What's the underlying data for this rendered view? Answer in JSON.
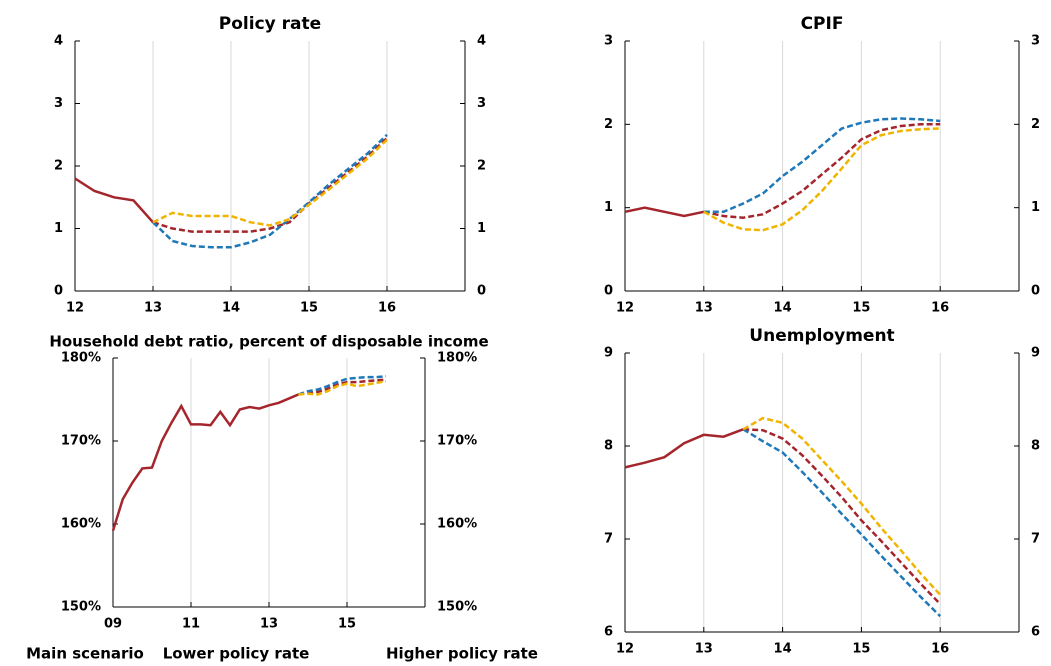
{
  "chart_data": [
    {
      "type": "line",
      "title": "Policy rate",
      "x": [
        12,
        12.25,
        12.5,
        12.75,
        13,
        13.25,
        13.5,
        13.75,
        14,
        14.25,
        14.5,
        14.75,
        15,
        15.25,
        15.5,
        15.75,
        16
      ],
      "xlim": [
        12,
        17
      ],
      "xticks": [
        12,
        13,
        14,
        15,
        16
      ],
      "ylim": [
        0,
        4
      ],
      "yticks": [
        0,
        1,
        2,
        3,
        4
      ],
      "grid": true,
      "series": [
        {
          "name": "Main scenario",
          "color": "#a4262c",
          "dashed": false,
          "values": [
            1.8,
            1.6,
            1.5,
            1.45,
            1.1,
            null,
            null,
            null,
            null,
            null,
            null,
            null,
            null,
            null,
            null,
            null,
            null
          ]
        },
        {
          "color": "#a4262c",
          "dashed": true,
          "values": [
            null,
            null,
            null,
            null,
            1.1,
            1.0,
            0.95,
            0.95,
            0.95,
            0.95,
            1.0,
            1.1,
            1.4,
            1.65,
            1.9,
            2.15,
            2.45
          ]
        },
        {
          "name": "Lower policy rate",
          "color": "#1f78b8",
          "dashed": true,
          "values": [
            null,
            null,
            null,
            null,
            1.1,
            0.8,
            0.72,
            0.7,
            0.7,
            0.78,
            0.9,
            1.15,
            1.42,
            1.7,
            1.95,
            2.2,
            2.5
          ]
        },
        {
          "name": "Higher policy rate",
          "color": "#f0b400",
          "dashed": true,
          "values": [
            null,
            null,
            null,
            null,
            1.1,
            1.25,
            1.2,
            1.2,
            1.2,
            1.1,
            1.05,
            1.15,
            1.38,
            1.62,
            1.87,
            2.12,
            2.42
          ]
        }
      ]
    },
    {
      "type": "line",
      "title": "CPIF",
      "x": [
        12,
        12.25,
        12.5,
        12.75,
        13,
        13.25,
        13.5,
        13.75,
        14,
        14.25,
        14.5,
        14.75,
        15,
        15.25,
        15.5,
        15.75,
        16
      ],
      "xlim": [
        12,
        17
      ],
      "xticks": [
        12,
        13,
        14,
        15,
        16
      ],
      "ylim": [
        0,
        3
      ],
      "yticks": [
        0,
        1,
        2,
        3
      ],
      "grid": true,
      "series": [
        {
          "color": "#a4262c",
          "dashed": false,
          "values": [
            0.95,
            1.0,
            0.95,
            0.9,
            0.95,
            null,
            null,
            null,
            null,
            null,
            null,
            null,
            null,
            null,
            null,
            null,
            null
          ]
        },
        {
          "color": "#a4262c",
          "dashed": true,
          "values": [
            null,
            null,
            null,
            null,
            0.95,
            0.9,
            0.88,
            0.92,
            1.05,
            1.2,
            1.4,
            1.6,
            1.82,
            1.93,
            1.98,
            2.0,
            2.0
          ]
        },
        {
          "color": "#1f78b8",
          "dashed": true,
          "values": [
            null,
            null,
            null,
            null,
            0.95,
            0.95,
            1.05,
            1.17,
            1.38,
            1.55,
            1.75,
            1.95,
            2.02,
            2.06,
            2.07,
            2.06,
            2.04
          ]
        },
        {
          "color": "#f0b400",
          "dashed": true,
          "values": [
            null,
            null,
            null,
            null,
            0.95,
            0.82,
            0.74,
            0.73,
            0.8,
            0.97,
            1.2,
            1.47,
            1.75,
            1.87,
            1.92,
            1.94,
            1.95
          ]
        }
      ]
    },
    {
      "type": "line",
      "title": "Household debt ratio, percent of disposable income",
      "x": [
        9,
        9.25,
        9.5,
        9.75,
        10,
        10.25,
        10.5,
        10.75,
        11,
        11.25,
        11.5,
        11.75,
        12,
        12.25,
        12.5,
        12.75,
        13,
        13.25,
        13.5,
        13.75,
        14,
        14.25,
        14.5,
        14.75,
        15,
        15.25,
        15.5,
        15.75,
        16
      ],
      "xlim": [
        9,
        17
      ],
      "xticks": [
        {
          "value": 9,
          "label": "09"
        },
        11,
        13,
        15
      ],
      "ylim": [
        150,
        180
      ],
      "yticks": [
        {
          "value": 150,
          "label": "150%"
        },
        {
          "value": 160,
          "label": "160%"
        },
        {
          "value": 170,
          "label": "170%"
        },
        {
          "value": 180,
          "label": "180%"
        }
      ],
      "grid": true,
      "series": [
        {
          "color": "#a4262c",
          "dashed": false,
          "values": [
            159.2,
            163,
            165,
            166.7,
            166.8,
            170,
            172.2,
            174.2,
            172,
            172,
            171.9,
            173.5,
            171.9,
            173.8,
            174.1,
            173.9,
            174.3,
            174.6,
            175.1,
            175.6,
            null,
            null,
            null,
            null,
            null,
            null,
            null,
            null,
            null
          ]
        },
        {
          "color": "#a4262c",
          "dashed": true,
          "values": [
            null,
            null,
            null,
            null,
            null,
            null,
            null,
            null,
            null,
            null,
            null,
            null,
            null,
            null,
            null,
            null,
            null,
            null,
            null,
            175.6,
            175.8,
            175.9,
            176.3,
            176.8,
            177.1,
            177.1,
            177.2,
            177.3,
            177.4
          ]
        },
        {
          "color": "#1f78b8",
          "dashed": true,
          "values": [
            null,
            null,
            null,
            null,
            null,
            null,
            null,
            null,
            null,
            null,
            null,
            null,
            null,
            null,
            null,
            null,
            null,
            null,
            null,
            175.6,
            176,
            176.2,
            176.6,
            177.1,
            177.5,
            177.6,
            177.7,
            177.7,
            177.8
          ]
        },
        {
          "color": "#f0b400",
          "dashed": true,
          "values": [
            null,
            null,
            null,
            null,
            null,
            null,
            null,
            null,
            null,
            null,
            null,
            null,
            null,
            null,
            null,
            null,
            null,
            null,
            null,
            175.6,
            175.7,
            175.6,
            176,
            176.6,
            176.9,
            176.6,
            176.8,
            177,
            177.2
          ]
        }
      ]
    },
    {
      "type": "line",
      "title": "Unemployment",
      "x": [
        12,
        12.25,
        12.5,
        12.75,
        13,
        13.25,
        13.5,
        13.75,
        14,
        14.25,
        14.5,
        14.75,
        15,
        15.25,
        15.5,
        15.75,
        16
      ],
      "xlim": [
        12,
        17
      ],
      "xticks": [
        12,
        13,
        14,
        15,
        16
      ],
      "ylim": [
        6,
        9
      ],
      "yticks": [
        6,
        7,
        8,
        9
      ],
      "grid": true,
      "series": [
        {
          "color": "#a4262c",
          "dashed": false,
          "values": [
            7.77,
            7.82,
            7.88,
            8.03,
            8.12,
            8.1,
            8.18,
            null,
            null,
            null,
            null,
            null,
            null,
            null,
            null,
            null,
            null
          ]
        },
        {
          "color": "#a4262c",
          "dashed": true,
          "values": [
            null,
            null,
            null,
            null,
            null,
            null,
            8.18,
            8.17,
            8.08,
            7.9,
            7.68,
            7.45,
            7.2,
            6.98,
            6.75,
            6.52,
            6.3
          ]
        },
        {
          "color": "#1f78b8",
          "dashed": true,
          "values": [
            null,
            null,
            null,
            null,
            null,
            null,
            8.18,
            8.05,
            7.93,
            7.72,
            7.5,
            7.27,
            7.05,
            6.82,
            6.6,
            6.38,
            6.17
          ]
        },
        {
          "color": "#f0b400",
          "dashed": true,
          "values": [
            null,
            null,
            null,
            null,
            null,
            null,
            8.18,
            8.3,
            8.25,
            8.08,
            7.85,
            7.62,
            7.38,
            7.12,
            6.88,
            6.63,
            6.4
          ]
        }
      ]
    }
  ]
}
